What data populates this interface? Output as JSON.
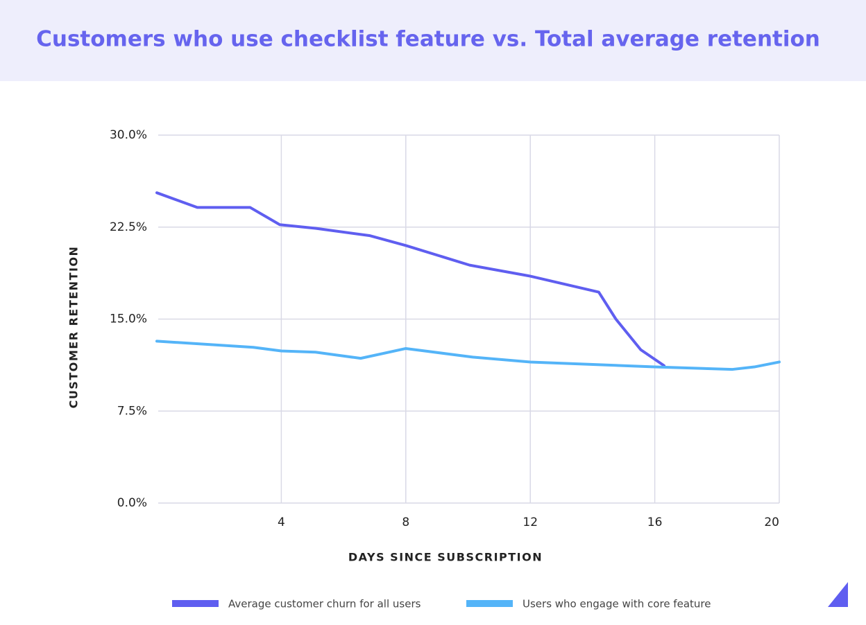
{
  "chart_data": {
    "type": "line",
    "title": "Customers who use checklist feature vs. Total average retention",
    "xlabel": "DAYS SINCE SUBSCRIPTION",
    "ylabel": "CUSTOMER RETENTION",
    "xlim": [
      0,
      20
    ],
    "xticks": [
      4,
      8,
      12,
      16,
      20
    ],
    "ylim": [
      0,
      30
    ],
    "yticks": [
      {
        "value": 0,
        "label": "0.0%"
      },
      {
        "value": 7.5,
        "label": "7.5%"
      },
      {
        "value": 15,
        "label": "15.0%"
      },
      {
        "value": 22.5,
        "label": "22.5%"
      },
      {
        "value": 30,
        "label": "30.0%"
      }
    ],
    "grid": true,
    "legend": "bottom",
    "series": [
      {
        "name": "Average customer churn for all users",
        "color": "#5f5ef0",
        "x": [
          0,
          1.3,
          3.0,
          3.95,
          5.1,
          6.85,
          8.0,
          10.05,
          12.0,
          14.2,
          14.75,
          15.55,
          16.3
        ],
        "values": [
          25.3,
          24.1,
          24.1,
          22.7,
          22.4,
          21.8,
          21.0,
          19.4,
          18.5,
          17.2,
          15.0,
          12.5,
          11.2
        ]
      },
      {
        "name": "Users who engage with core feature",
        "color": "#54b4f8",
        "x": [
          0,
          3.1,
          4.0,
          5.1,
          6.55,
          8.0,
          10.15,
          12.0,
          16.0,
          18.5,
          19.2,
          20
        ],
        "values": [
          13.2,
          12.7,
          12.4,
          12.3,
          11.8,
          12.6,
          11.9,
          11.5,
          11.1,
          10.9,
          11.1,
          11.5
        ]
      }
    ]
  }
}
